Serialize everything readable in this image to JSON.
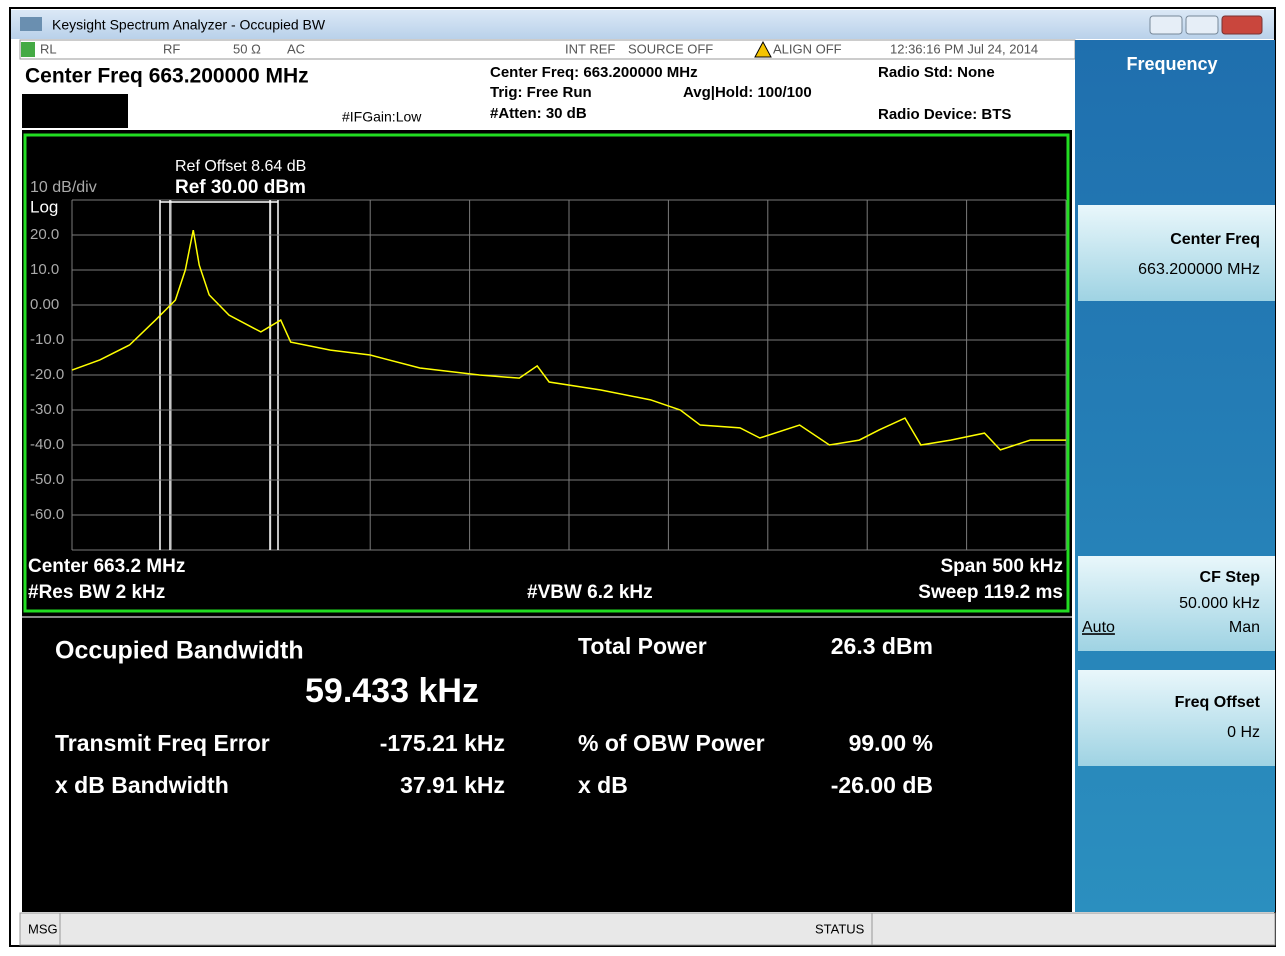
{
  "window": {
    "title": "Keysight Spectrum Analyzer - Occupied BW"
  },
  "status_bar": {
    "rl": "RL",
    "rf": "RF",
    "impedance": "50 Ω",
    "coupling": "AC",
    "int_ref": "INT REF",
    "source": "SOURCE OFF",
    "align": "ALIGN OFF",
    "time": "12:36:16 PM Jul 24, 2014"
  },
  "header": {
    "center_freq": "Center Freq 663.200000 MHz",
    "center_freq_info": "Center Freq: 663.200000 MHz",
    "trig": "Trig: Free Run",
    "avg": "Avg|Hold: 100/100",
    "atten": "#Atten: 30 dB",
    "ifgain": "#IFGain:Low",
    "radio_std": "Radio Std: None",
    "radio_device": "Radio Device: BTS"
  },
  "graph": {
    "scale": "10 dB/div",
    "log": "Log",
    "ref_offset": "Ref Offset 8.64 dB",
    "ref": "Ref 30.00 dBm",
    "center": "Center  663.2 MHz",
    "res_bw": "#Res BW  2 kHz",
    "vbw": "#VBW  6.2 kHz",
    "span": "Span 500 kHz",
    "sweep": "Sweep  119.2 ms"
  },
  "chart_data": {
    "type": "line",
    "color": "#ffff00",
    "grid": true,
    "x": [
      662.95,
      662.964,
      662.979,
      662.992,
      663.002,
      663.007,
      663.011,
      663.014,
      663.019,
      663.029,
      663.045,
      663.055,
      663.06,
      663.08,
      663.1,
      663.125,
      663.155,
      663.175,
      663.184,
      663.19,
      663.216,
      663.241,
      663.256,
      663.266,
      663.286,
      663.296,
      663.316,
      663.331,
      663.346,
      663.356,
      663.369,
      663.377,
      663.392,
      663.409,
      663.417,
      663.432,
      663.45
    ],
    "values": [
      -18.6,
      -15.7,
      -11.4,
      -4.3,
      1.4,
      10,
      21.4,
      11.4,
      2.9,
      -2.9,
      -7.7,
      -4.3,
      -10.6,
      -12.9,
      -14.3,
      -18,
      -20,
      -20.9,
      -17.4,
      -22,
      -24.3,
      -27.1,
      -30,
      -34.3,
      -35.1,
      -38,
      -34.3,
      -40,
      -38.6,
      -35.7,
      -32.3,
      -40,
      -38.6,
      -36.6,
      -41.4,
      -38.6,
      -38.6
    ],
    "xlim": [
      662.95,
      663.45
    ],
    "ylim": [
      -70,
      30
    ],
    "yticks": [
      {
        "value": 20,
        "label": "20.0"
      },
      {
        "value": 10,
        "label": "10.0"
      },
      {
        "value": 0,
        "label": "0.00"
      },
      {
        "value": -10,
        "label": "-10.0"
      },
      {
        "value": -20,
        "label": "-20.0"
      },
      {
        "value": -30,
        "label": "-30.0"
      },
      {
        "value": -40,
        "label": "-40.0"
      },
      {
        "value": -50,
        "label": "-50.0"
      },
      {
        "value": -60,
        "label": "-60.0"
      }
    ]
  },
  "results": {
    "title": "Occupied Bandwidth",
    "obw": "59.433 kHz",
    "left": [
      [
        "Transmit Freq Error",
        "-175.21 kHz"
      ],
      [
        "x dB Bandwidth",
        "37.91 kHz"
      ]
    ],
    "right": [
      [
        "Total Power",
        "26.3 dBm"
      ],
      [
        "% of OBW Power",
        "99.00 %"
      ],
      [
        "x dB",
        "-26.00 dB"
      ]
    ]
  },
  "softkeys": {
    "menu": "Frequency",
    "keys": [
      {
        "label": "Center Freq",
        "value": "663.200000 MHz"
      },
      {
        "label": "CF Step",
        "value": "50.000 kHz",
        "auto": "Auto",
        "man": "Man"
      },
      {
        "label": "Freq Offset",
        "value": "0 Hz"
      }
    ]
  },
  "footer": {
    "msg": "MSG",
    "status": "STATUS"
  }
}
